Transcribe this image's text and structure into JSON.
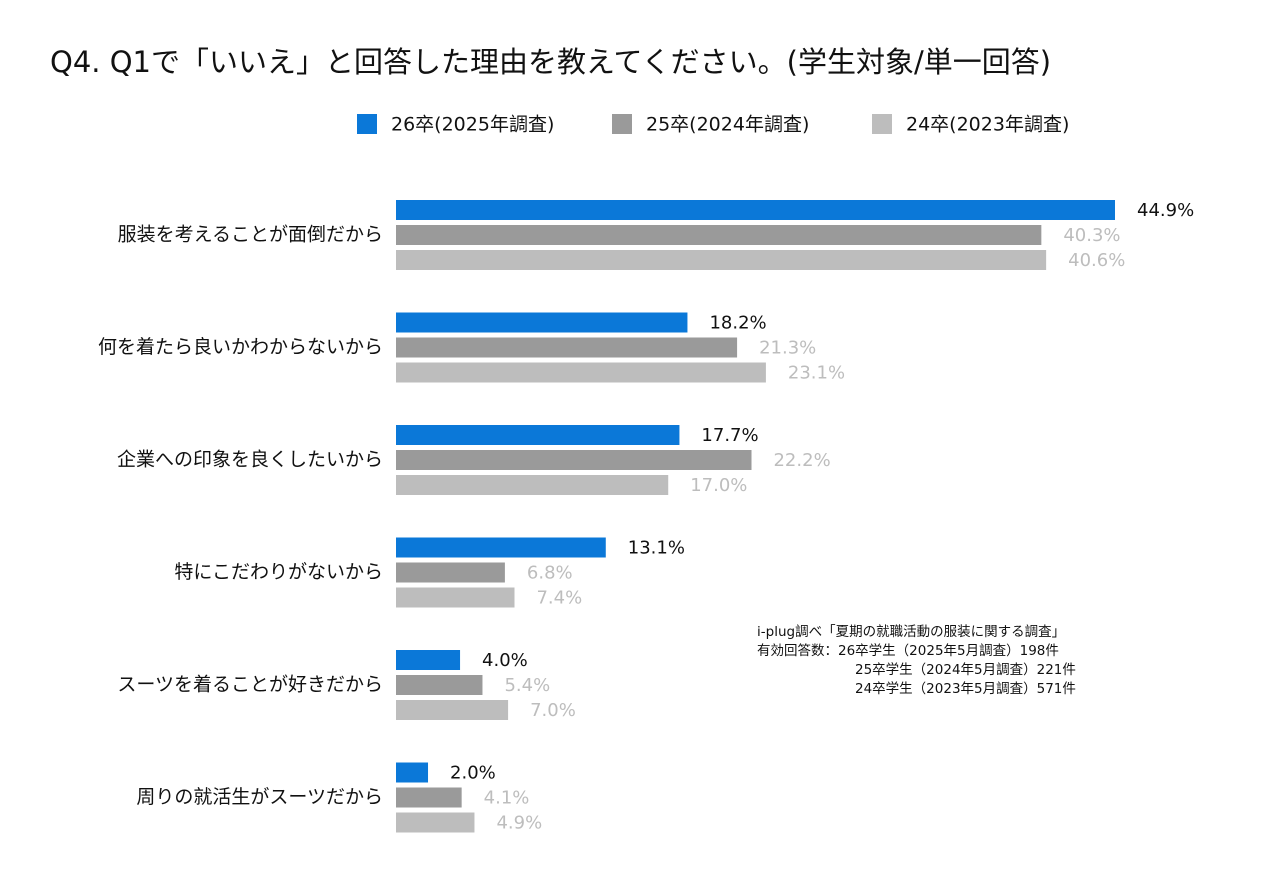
{
  "chart_data": {
    "type": "hbar",
    "title": "Q4. Q1で「いいえ」と回答した理由を教えてください。(学生対象/単一回答)",
    "categories": [
      "服装を考えることが面倒だから",
      "何を着たら良いかわからないから",
      "企業への印象を良くしたいから",
      "特にこだわりがないから",
      "スーツを着ることが好きだから",
      "周りの就活生がスーツだから"
    ],
    "series": [
      {
        "name": "26卒(2025年調査)",
        "color": "#0b78d8",
        "label_color": "#111111",
        "values": [
          44.9,
          18.2,
          17.7,
          13.1,
          4.0,
          2.0
        ],
        "value_labels": [
          "44.9%",
          "18.2%",
          "17.7%",
          "13.1%",
          "4.0%",
          "2.0%"
        ]
      },
      {
        "name": "25卒(2024年調査)",
        "color": "#9a9a9a",
        "label_color": "#bdbdbd",
        "values": [
          40.3,
          21.3,
          22.2,
          6.8,
          5.4,
          4.1
        ],
        "value_labels": [
          "40.3%",
          "21.3%",
          "22.2%",
          "6.8%",
          "5.4%",
          "4.1%"
        ]
      },
      {
        "name": "24卒(2023年調査)",
        "color": "#bdbdbd",
        "label_color": "#bdbdbd",
        "values": [
          40.6,
          23.1,
          17.0,
          7.4,
          7.0,
          4.9
        ],
        "value_labels": [
          "40.6%",
          "23.1%",
          "17.0%",
          "7.4%",
          "7.0%",
          "4.9%"
        ]
      }
    ],
    "note": [
      "i-plug調べ「夏期の就職活動の服装に関する調査」",
      "有効回答数：26卒学生（2025年5月調査）198件",
      "25卒学生（2024年5月調査）221件",
      "24卒学生（2023年5月調査）571件"
    ]
  }
}
